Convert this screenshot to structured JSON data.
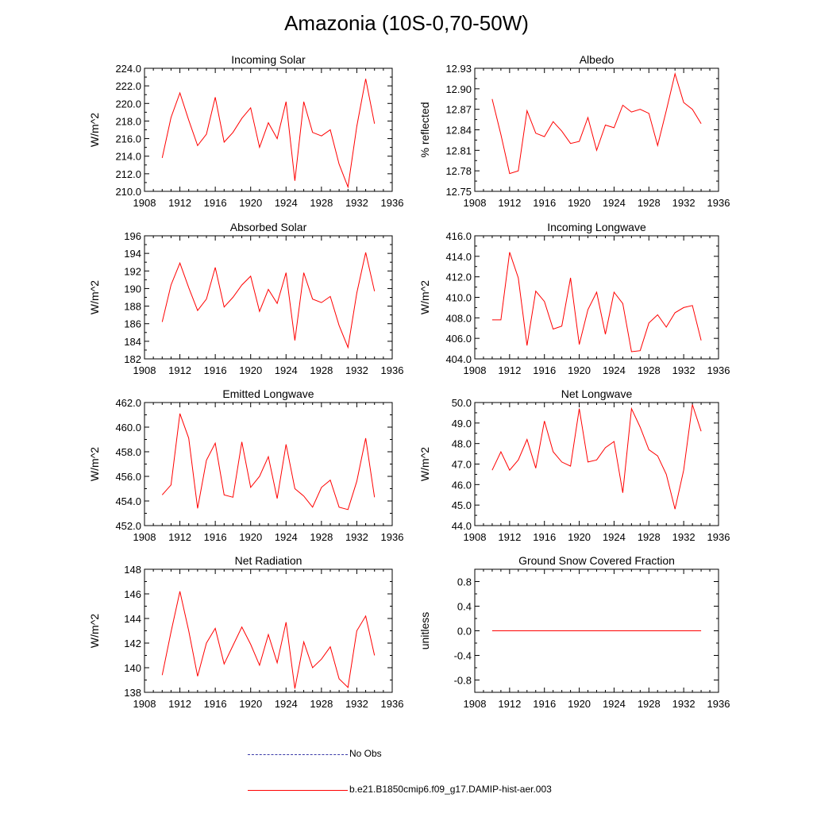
{
  "page": {
    "title": "Amazonia (10S-0,70-50W)"
  },
  "legend": {
    "no_obs_label": "No Obs",
    "model_label": "b.e21.B1850cmip6.f09_g17.DAMIP-hist-aer.003",
    "no_obs_color": "#3a3aa8",
    "model_color": "#ff0000"
  },
  "chart_data": [
    {
      "type": "line",
      "title": "Incoming Solar",
      "ylabel": "W/m^2",
      "xlim": [
        1908,
        1936
      ],
      "ylim": [
        210,
        224
      ],
      "xticks": [
        1908,
        1912,
        1916,
        1920,
        1924,
        1928,
        1932,
        1936
      ],
      "yticks": [
        210,
        212,
        214,
        216,
        218,
        220,
        222,
        224
      ],
      "ytick_labels": [
        "210.0",
        "212.0",
        "214.0",
        "216.0",
        "218.0",
        "220.0",
        "222.0",
        "224.0"
      ],
      "x": [
        1910,
        1911,
        1912,
        1913,
        1914,
        1915,
        1916,
        1917,
        1918,
        1919,
        1920,
        1921,
        1922,
        1923,
        1924,
        1925,
        1926,
        1927,
        1928,
        1929,
        1930,
        1931,
        1932,
        1933,
        1934
      ],
      "series": [
        {
          "values": [
            213.8,
            218.4,
            221.2,
            218.1,
            215.2,
            216.5,
            220.7,
            215.6,
            216.7,
            218.3,
            219.5,
            215.0,
            217.8,
            216.0,
            220.2,
            211.2,
            220.2,
            216.7,
            216.3,
            217.0,
            213.1,
            210.5,
            217.4,
            222.8,
            217.7
          ],
          "color": "#ff0000"
        }
      ]
    },
    {
      "type": "line",
      "title": "Albedo",
      "ylabel": "% reflected",
      "xlim": [
        1908,
        1936
      ],
      "ylim": [
        12.75,
        12.93
      ],
      "xticks": [
        1908,
        1912,
        1916,
        1920,
        1924,
        1928,
        1932,
        1936
      ],
      "yticks": [
        12.75,
        12.78,
        12.81,
        12.84,
        12.87,
        12.9,
        12.93
      ],
      "ytick_labels": [
        "12.75",
        "12.78",
        "12.81",
        "12.84",
        "12.87",
        "12.90",
        "12.93"
      ],
      "x": [
        1910,
        1911,
        1912,
        1913,
        1914,
        1915,
        1916,
        1917,
        1918,
        1919,
        1920,
        1921,
        1922,
        1923,
        1924,
        1925,
        1926,
        1927,
        1928,
        1929,
        1930,
        1931,
        1932,
        1933,
        1934
      ],
      "series": [
        {
          "values": [
            12.885,
            12.833,
            12.776,
            12.78,
            12.868,
            12.835,
            12.83,
            12.852,
            12.838,
            12.82,
            12.823,
            12.858,
            12.81,
            12.847,
            12.843,
            12.876,
            12.866,
            12.87,
            12.864,
            12.817,
            12.868,
            12.922,
            12.88,
            12.87,
            12.849
          ],
          "color": "#ff0000"
        }
      ]
    },
    {
      "type": "line",
      "title": "Absorbed Solar",
      "ylabel": "W/m^2",
      "xlim": [
        1908,
        1936
      ],
      "ylim": [
        182,
        196
      ],
      "xticks": [
        1908,
        1912,
        1916,
        1920,
        1924,
        1928,
        1932,
        1936
      ],
      "yticks": [
        182,
        184,
        186,
        188,
        190,
        192,
        194,
        196
      ],
      "ytick_labels": [
        "182",
        "184",
        "186",
        "188",
        "190",
        "192",
        "194",
        "196"
      ],
      "x": [
        1910,
        1911,
        1912,
        1913,
        1914,
        1915,
        1916,
        1917,
        1918,
        1919,
        1920,
        1921,
        1922,
        1923,
        1924,
        1925,
        1926,
        1927,
        1928,
        1929,
        1930,
        1931,
        1932,
        1933,
        1934
      ],
      "series": [
        {
          "values": [
            186.2,
            190.4,
            192.9,
            190.1,
            187.5,
            188.8,
            192.4,
            187.9,
            189.0,
            190.4,
            191.4,
            187.4,
            189.9,
            188.3,
            191.8,
            184.1,
            191.8,
            188.8,
            188.4,
            189.1,
            185.8,
            183.3,
            189.5,
            194.1,
            189.7
          ],
          "color": "#ff0000"
        }
      ]
    },
    {
      "type": "line",
      "title": "Incoming Longwave",
      "ylabel": "W/m^2",
      "xlim": [
        1908,
        1936
      ],
      "ylim": [
        404,
        416
      ],
      "xticks": [
        1908,
        1912,
        1916,
        1920,
        1924,
        1928,
        1932,
        1936
      ],
      "yticks": [
        404,
        406,
        408,
        410,
        412,
        414,
        416
      ],
      "ytick_labels": [
        "404.0",
        "406.0",
        "408.0",
        "410.0",
        "412.0",
        "414.0",
        "416.0"
      ],
      "x": [
        1910,
        1911,
        1912,
        1913,
        1914,
        1915,
        1916,
        1917,
        1918,
        1919,
        1920,
        1921,
        1922,
        1923,
        1924,
        1925,
        1926,
        1927,
        1928,
        1929,
        1930,
        1931,
        1932,
        1933,
        1934
      ],
      "series": [
        {
          "values": [
            407.8,
            407.8,
            414.4,
            411.9,
            405.3,
            410.6,
            409.6,
            406.9,
            407.2,
            411.9,
            405.4,
            408.8,
            410.5,
            406.4,
            410.5,
            409.4,
            404.7,
            404.8,
            407.5,
            408.3,
            407.1,
            408.5,
            409.0,
            409.2,
            405.8
          ],
          "color": "#ff0000"
        }
      ]
    },
    {
      "type": "line",
      "title": "Emitted Longwave",
      "ylabel": "W/m^2",
      "xlim": [
        1908,
        1936
      ],
      "ylim": [
        452,
        462
      ],
      "xticks": [
        1908,
        1912,
        1916,
        1920,
        1924,
        1928,
        1932,
        1936
      ],
      "yticks": [
        452,
        454,
        456,
        458,
        460,
        462
      ],
      "ytick_labels": [
        "452.0",
        "454.0",
        "456.0",
        "458.0",
        "460.0",
        "462.0"
      ],
      "x": [
        1910,
        1911,
        1912,
        1913,
        1914,
        1915,
        1916,
        1917,
        1918,
        1919,
        1920,
        1921,
        1922,
        1923,
        1924,
        1925,
        1926,
        1927,
        1928,
        1929,
        1930,
        1931,
        1932,
        1933,
        1934
      ],
      "series": [
        {
          "values": [
            454.5,
            455.3,
            461.1,
            459.1,
            453.4,
            457.3,
            458.7,
            454.5,
            454.3,
            458.8,
            455.1,
            456.0,
            457.6,
            454.2,
            458.6,
            455.0,
            454.4,
            453.5,
            455.1,
            455.7,
            453.5,
            453.3,
            455.6,
            459.1,
            454.3
          ],
          "color": "#ff0000"
        }
      ]
    },
    {
      "type": "line",
      "title": "Net Longwave",
      "ylabel": "W/m^2",
      "xlim": [
        1908,
        1936
      ],
      "ylim": [
        44,
        50
      ],
      "xticks": [
        1908,
        1912,
        1916,
        1920,
        1924,
        1928,
        1932,
        1936
      ],
      "yticks": [
        44,
        45,
        46,
        47,
        48,
        49,
        50
      ],
      "ytick_labels": [
        "44.0",
        "45.0",
        "46.0",
        "47.0",
        "48.0",
        "49.0",
        "50.0"
      ],
      "x": [
        1910,
        1911,
        1912,
        1913,
        1914,
        1915,
        1916,
        1917,
        1918,
        1919,
        1920,
        1921,
        1922,
        1923,
        1924,
        1925,
        1926,
        1927,
        1928,
        1929,
        1930,
        1931,
        1932,
        1933,
        1934
      ],
      "series": [
        {
          "values": [
            46.7,
            47.6,
            46.7,
            47.2,
            48.2,
            46.8,
            49.1,
            47.6,
            47.1,
            46.9,
            49.7,
            47.1,
            47.2,
            47.8,
            48.1,
            45.6,
            49.7,
            48.8,
            47.7,
            47.4,
            46.5,
            44.8,
            46.7,
            49.9,
            48.6
          ],
          "color": "#ff0000"
        }
      ]
    },
    {
      "type": "line",
      "title": "Net Radiation",
      "ylabel": "W/m^2",
      "xlim": [
        1908,
        1936
      ],
      "ylim": [
        138,
        148
      ],
      "xticks": [
        1908,
        1912,
        1916,
        1920,
        1924,
        1928,
        1932,
        1936
      ],
      "yticks": [
        138,
        140,
        142,
        144,
        146,
        148
      ],
      "ytick_labels": [
        "138",
        "140",
        "142",
        "144",
        "146",
        "148"
      ],
      "x": [
        1910,
        1911,
        1912,
        1913,
        1914,
        1915,
        1916,
        1917,
        1918,
        1919,
        1920,
        1921,
        1922,
        1923,
        1924,
        1925,
        1926,
        1927,
        1928,
        1929,
        1930,
        1931,
        1932,
        1933,
        1934
      ],
      "series": [
        {
          "values": [
            139.4,
            142.9,
            146.2,
            143.0,
            139.3,
            142.0,
            143.2,
            140.3,
            141.8,
            143.3,
            141.9,
            140.2,
            142.7,
            140.4,
            143.7,
            138.3,
            142.1,
            140.0,
            140.7,
            141.7,
            139.1,
            138.4,
            143.0,
            144.2,
            141.0
          ],
          "color": "#ff0000"
        }
      ]
    },
    {
      "type": "line",
      "title": "Ground Snow Covered Fraction",
      "ylabel": "unitless",
      "xlim": [
        1908,
        1936
      ],
      "ylim": [
        -1.0,
        1.0
      ],
      "xticks": [
        1908,
        1912,
        1916,
        1920,
        1924,
        1928,
        1932,
        1936
      ],
      "yticks": [
        -0.8,
        -0.4,
        0.0,
        0.4,
        0.8
      ],
      "ytick_labels": [
        "-0.8",
        "-0.4",
        "0.0",
        "0.4",
        "0.8"
      ],
      "x": [
        1910,
        1911,
        1912,
        1913,
        1914,
        1915,
        1916,
        1917,
        1918,
        1919,
        1920,
        1921,
        1922,
        1923,
        1924,
        1925,
        1926,
        1927,
        1928,
        1929,
        1930,
        1931,
        1932,
        1933,
        1934
      ],
      "series": [
        {
          "values": [
            0,
            0,
            0,
            0,
            0,
            0,
            0,
            0,
            0,
            0,
            0,
            0,
            0,
            0,
            0,
            0,
            0,
            0,
            0,
            0,
            0,
            0,
            0,
            0,
            0
          ],
          "color": "#ff0000"
        }
      ]
    }
  ]
}
